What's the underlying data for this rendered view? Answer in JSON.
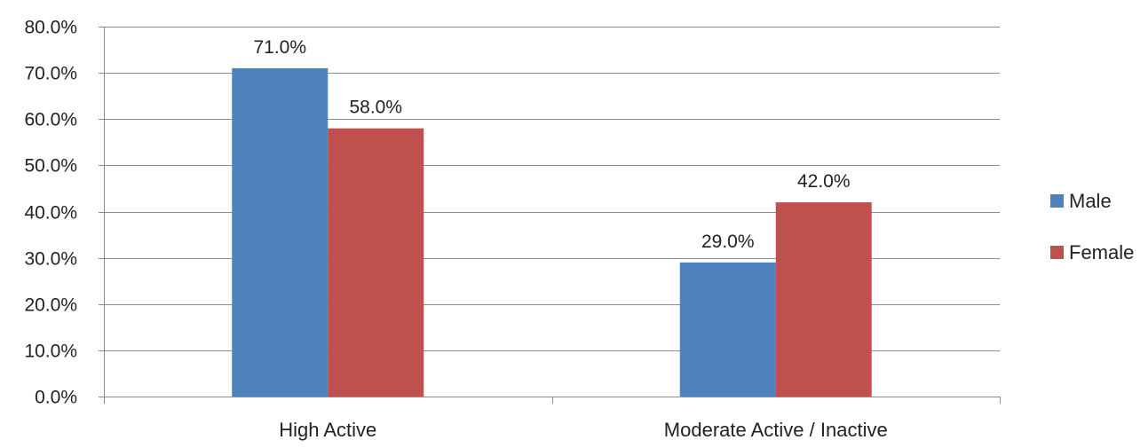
{
  "chart_data": {
    "type": "bar",
    "categories": [
      "High Active",
      "Moderate Active / Inactive"
    ],
    "series": [
      {
        "name": "Male",
        "values": [
          71.0,
          29.0
        ],
        "labels": [
          "71.0%",
          "29.0%"
        ],
        "color": "#4F81BD"
      },
      {
        "name": "Female",
        "values": [
          58.0,
          42.0
        ],
        "labels": [
          "58.0%",
          "42.0%"
        ],
        "color": "#C0504D"
      }
    ],
    "ylim": [
      0,
      80
    ],
    "yticks": [
      0,
      10,
      20,
      30,
      40,
      50,
      60,
      70,
      80
    ],
    "ytick_labels": [
      "0.0%",
      "10.0%",
      "20.0%",
      "30.0%",
      "40.0%",
      "50.0%",
      "60.0%",
      "70.0%",
      "80.0%"
    ],
    "grid": true,
    "legend_position": "right",
    "gridline_color": "#8c8c8c"
  }
}
